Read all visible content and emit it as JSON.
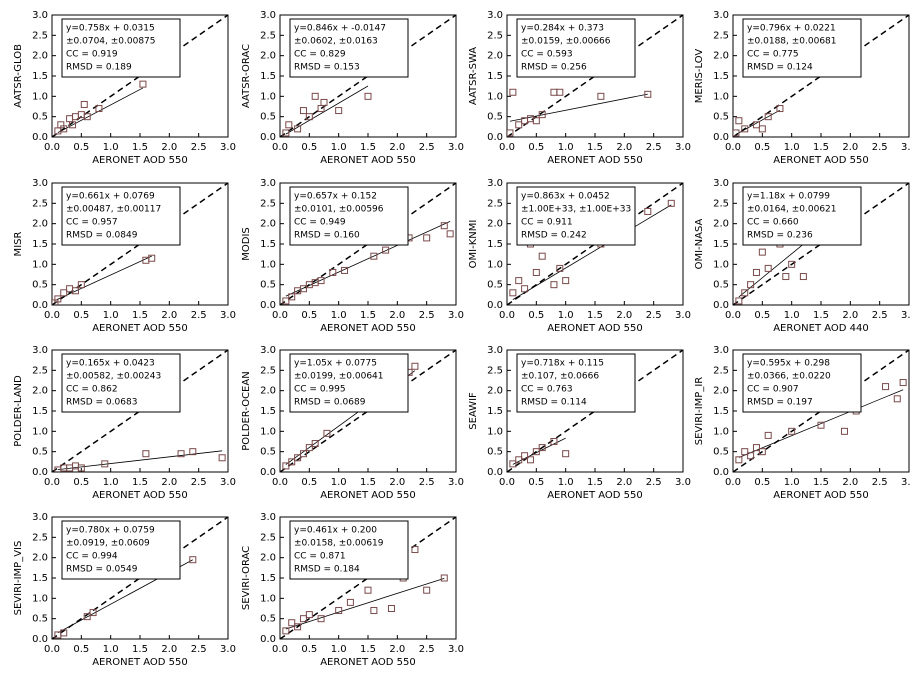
{
  "chart_data": [
    {
      "type": "scatter",
      "ylabel": "AATSR-GLOB",
      "xlabel": "AERONET AOD 550",
      "annotation": [
        "y=0.758x + 0.0315",
        "±0.0704, ±0.00875",
        "CC = 0.919",
        "RMSD = 0.189"
      ],
      "fit": {
        "slope": 0.758,
        "intercept": 0.0315
      },
      "color": "#7a4a4a",
      "x": [
        0.1,
        0.15,
        0.2,
        0.3,
        0.35,
        0.4,
        0.5,
        0.55,
        0.6,
        0.8,
        1.55
      ],
      "y": [
        0.15,
        0.3,
        0.2,
        0.45,
        0.3,
        0.5,
        0.55,
        0.8,
        0.5,
        0.7,
        1.3
      ],
      "xlim": [
        0,
        3
      ],
      "ylim": [
        0,
        3
      ],
      "xticks": [
        {
          "value": 0,
          "label": "0.0"
        },
        0.5,
        {
          "value": 1,
          "label": "1.0"
        },
        1.5,
        {
          "value": 2,
          "label": "2.0"
        },
        2.5,
        {
          "value": 3,
          "label": "3.0"
        }
      ],
      "yticks": [
        {
          "value": 0,
          "label": "0.0"
        },
        0.5,
        {
          "value": 1,
          "label": "1.0"
        },
        1.5,
        {
          "value": 2,
          "label": "2.0"
        },
        2.5,
        {
          "value": 3,
          "label": "3.0"
        }
      ]
    },
    {
      "type": "scatter",
      "ylabel": "AATSR-ORAC",
      "xlabel": "AERONET AOD 550",
      "annotation": [
        "y=0.846x + -0.0147",
        "±0.0602, ±0.0163",
        "CC = 0.829",
        "RMSD = 0.153"
      ],
      "fit": {
        "slope": 0.846,
        "intercept": -0.0147
      },
      "color": "#7a4a4a",
      "x": [
        0.1,
        0.15,
        0.3,
        0.4,
        0.5,
        0.6,
        0.7,
        0.75,
        1.0,
        1.5
      ],
      "y": [
        0.1,
        0.3,
        0.2,
        0.65,
        0.5,
        1.0,
        0.7,
        0.85,
        0.65,
        1.0
      ],
      "xlim": [
        0,
        3
      ],
      "ylim": [
        0,
        3
      ],
      "xticks": [
        {
          "value": 0,
          "label": "0.0"
        },
        0.5,
        {
          "value": 1,
          "label": "1.0"
        },
        1.5,
        {
          "value": 2,
          "label": "2.0"
        },
        2.5,
        {
          "value": 3,
          "label": "3.0"
        }
      ],
      "yticks": [
        {
          "value": 0,
          "label": "0.0"
        },
        0.5,
        {
          "value": 1,
          "label": "1.0"
        },
        1.5,
        {
          "value": 2,
          "label": "2.0"
        },
        2.5,
        {
          "value": 3,
          "label": "3.0"
        }
      ]
    },
    {
      "type": "scatter",
      "ylabel": "AATSR-SWA",
      "xlabel": "AERONET AOD 550",
      "annotation": [
        "y=0.284x + 0.373",
        "±0.0159, ±0.00666",
        "CC = 0.593",
        "RMSD = 0.256"
      ],
      "fit": {
        "slope": 0.284,
        "intercept": 0.373
      },
      "color": "#7a4a4a",
      "x": [
        0.05,
        0.1,
        0.2,
        0.3,
        0.4,
        0.5,
        0.6,
        0.8,
        0.9,
        1.6,
        2.4
      ],
      "y": [
        0.1,
        1.1,
        0.3,
        0.4,
        0.45,
        0.4,
        0.55,
        1.1,
        1.1,
        1.0,
        1.05
      ],
      "xlim": [
        0,
        3
      ],
      "ylim": [
        0,
        3
      ],
      "xticks": [
        {
          "value": 0,
          "label": "0.0"
        },
        0.5,
        {
          "value": 1,
          "label": "1.0"
        },
        1.5,
        {
          "value": 2,
          "label": "2.0"
        },
        2.5,
        {
          "value": 3,
          "label": "3.0"
        }
      ],
      "yticks": [
        {
          "value": 0,
          "label": "0.0"
        },
        0.5,
        {
          "value": 1,
          "label": "1.0"
        },
        1.5,
        {
          "value": 2,
          "label": "2.0"
        },
        2.5,
        {
          "value": 3,
          "label": "3.0"
        }
      ]
    },
    {
      "type": "scatter",
      "ylabel": "MERIS-LOV",
      "xlabel": "AERONET AOD 550",
      "annotation": [
        "y=0.796x + 0.0221",
        "±0.0188, ±0.00681",
        "CC = 0.775",
        "RMSD = 0.124"
      ],
      "fit": {
        "slope": 0.796,
        "intercept": 0.0221
      },
      "color": "#7a4a4a",
      "x": [
        0.05,
        0.1,
        0.2,
        0.4,
        0.5,
        0.6,
        0.8
      ],
      "y": [
        0.1,
        0.4,
        0.2,
        0.3,
        0.2,
        0.5,
        0.7
      ],
      "xlim": [
        0,
        3
      ],
      "ylim": [
        0,
        3
      ],
      "xticks": [
        {
          "value": 0,
          "label": "0.0"
        },
        0.5,
        {
          "value": 1,
          "label": "1.0"
        },
        1.5,
        {
          "value": 2,
          "label": "2.0"
        },
        2.5,
        {
          "value": 3,
          "label": "3.0"
        }
      ],
      "yticks": [
        {
          "value": 0,
          "label": "0.0"
        },
        0.5,
        {
          "value": 1,
          "label": "1.0"
        },
        1.5,
        {
          "value": 2,
          "label": "2.0"
        },
        2.5,
        {
          "value": 3,
          "label": "3.0"
        }
      ]
    },
    {
      "type": "scatter",
      "ylabel": "MISR",
      "xlabel": "AERONET AOD 550",
      "annotation": [
        "y=0.661x + 0.0769",
        "±0.00487, ±0.00117",
        "CC = 0.957",
        "RMSD = 0.0849"
      ],
      "fit": {
        "slope": 0.661,
        "intercept": 0.0769
      },
      "color": "#7a4a4a",
      "x": [
        0.05,
        0.1,
        0.2,
        0.3,
        0.4,
        0.5,
        1.6,
        1.7
      ],
      "y": [
        0.05,
        0.15,
        0.3,
        0.4,
        0.35,
        0.5,
        1.1,
        1.15
      ],
      "xlim": [
        0,
        3
      ],
      "ylim": [
        0,
        3
      ],
      "xticks": [
        {
          "value": 0,
          "label": "0.0"
        },
        0.5,
        {
          "value": 1,
          "label": "1.0"
        },
        1.5,
        {
          "value": 2,
          "label": "2.0"
        },
        2.5,
        {
          "value": 3,
          "label": "3.0"
        }
      ],
      "yticks": [
        {
          "value": 0,
          "label": "0.0"
        },
        0.5,
        {
          "value": 1,
          "label": "1.0"
        },
        1.5,
        {
          "value": 2,
          "label": "2.0"
        },
        2.5,
        {
          "value": 3,
          "label": "3.0"
        }
      ]
    },
    {
      "type": "scatter",
      "ylabel": "MODIS",
      "xlabel": "AERONET AOD 550",
      "annotation": [
        "y=0.657x + 0.152",
        "±0.0101, ±0.00596",
        "CC = 0.949",
        "RMSD = 0.160"
      ],
      "fit": {
        "slope": 0.657,
        "intercept": 0.152
      },
      "color": "#7a4a4a",
      "x": [
        0.1,
        0.2,
        0.3,
        0.4,
        0.5,
        0.6,
        0.7,
        0.9,
        1.1,
        1.6,
        1.8,
        2.2,
        2.5,
        2.8,
        2.9
      ],
      "y": [
        0.1,
        0.2,
        0.35,
        0.4,
        0.5,
        0.55,
        0.6,
        0.8,
        0.85,
        1.2,
        1.35,
        1.65,
        1.65,
        1.95,
        1.75
      ],
      "xlim": [
        0,
        3
      ],
      "ylim": [
        0,
        3
      ],
      "xticks": [
        {
          "value": 0,
          "label": "0.0"
        },
        0.5,
        {
          "value": 1,
          "label": "1.0"
        },
        1.5,
        {
          "value": 2,
          "label": "2.0"
        },
        2.5,
        {
          "value": 3,
          "label": "3.0"
        }
      ],
      "yticks": [
        {
          "value": 0,
          "label": "0.0"
        },
        0.5,
        {
          "value": 1,
          "label": "1.0"
        },
        1.5,
        {
          "value": 2,
          "label": "2.0"
        },
        2.5,
        {
          "value": 3,
          "label": "3.0"
        }
      ]
    },
    {
      "type": "scatter",
      "ylabel": "OMI-KNMI",
      "xlabel": "AERONET AOD 550",
      "annotation": [
        "y=0.863x + 0.0452",
        "±1.00E+33, ±1.00E+33",
        "CC = 0.911",
        "RMSD = 0.242"
      ],
      "fit": {
        "slope": 0.863,
        "intercept": 0.0452
      },
      "color": "#7a4a4a",
      "x": [
        0.1,
        0.2,
        0.3,
        0.4,
        0.5,
        0.6,
        0.8,
        0.9,
        1.0,
        1.6,
        2.4,
        2.8
      ],
      "y": [
        0.3,
        0.6,
        0.4,
        1.5,
        0.8,
        1.2,
        0.5,
        0.9,
        0.6,
        1.5,
        2.3,
        2.5
      ],
      "xlim": [
        0,
        3
      ],
      "ylim": [
        0,
        3
      ],
      "xticks": [
        {
          "value": 0,
          "label": "0.0"
        },
        0.5,
        {
          "value": 1,
          "label": "1.0"
        },
        1.5,
        {
          "value": 2,
          "label": "2.0"
        },
        2.5,
        {
          "value": 3,
          "label": "3.0"
        }
      ],
      "yticks": [
        {
          "value": 0,
          "label": "0.0"
        },
        0.5,
        {
          "value": 1,
          "label": "1.0"
        },
        1.5,
        {
          "value": 2,
          "label": "2.0"
        },
        2.5,
        {
          "value": 3,
          "label": "3.0"
        }
      ]
    },
    {
      "type": "scatter",
      "ylabel": "OMI-NASA",
      "xlabel": "AERONET AOD 440",
      "annotation": [
        "y=1.18x + 0.0799",
        "±0.0164, ±0.00621",
        "CC = 0.660",
        "RMSD = 0.236"
      ],
      "fit": {
        "slope": 1.18,
        "intercept": 0.0799
      },
      "color": "#7a4a4a",
      "x": [
        0.1,
        0.2,
        0.3,
        0.4,
        0.5,
        0.6,
        0.8,
        0.9,
        1.0,
        1.2
      ],
      "y": [
        0.1,
        0.3,
        0.5,
        0.8,
        1.3,
        0.9,
        1.5,
        0.7,
        1.0,
        0.7
      ],
      "xlim": [
        0,
        3
      ],
      "ylim": [
        0,
        3
      ],
      "xticks": [
        {
          "value": 0,
          "label": "0.0"
        },
        0.5,
        {
          "value": 1,
          "label": "1.0"
        },
        1.5,
        {
          "value": 2,
          "label": "2.0"
        },
        2.5,
        {
          "value": 3,
          "label": "3.0"
        }
      ],
      "yticks": [
        {
          "value": 0,
          "label": "0.0"
        },
        0.5,
        {
          "value": 1,
          "label": "1.0"
        },
        1.5,
        {
          "value": 2,
          "label": "2.0"
        },
        2.5,
        {
          "value": 3,
          "label": "3.0"
        }
      ]
    },
    {
      "type": "scatter",
      "ylabel": "POLDER-LAND",
      "xlabel": "AERONET AOD 550",
      "annotation": [
        "y=0.165x + 0.0423",
        "±0.00582, ±0.00243",
        "CC = 0.862",
        "RMSD = 0.0683"
      ],
      "fit": {
        "slope": 0.165,
        "intercept": 0.0423
      },
      "color": "#7a4a4a",
      "x": [
        0.1,
        0.2,
        0.3,
        0.4,
        0.5,
        0.9,
        1.6,
        2.2,
        2.4,
        2.9
      ],
      "y": [
        0.05,
        0.1,
        0.1,
        0.15,
        0.1,
        0.2,
        0.45,
        0.45,
        0.5,
        0.35
      ],
      "xlim": [
        0,
        3
      ],
      "ylim": [
        0,
        3
      ],
      "xticks": [
        {
          "value": 0,
          "label": "0.0"
        },
        0.5,
        {
          "value": 1,
          "label": "1.0"
        },
        1.5,
        {
          "value": 2,
          "label": "2.0"
        },
        2.5,
        {
          "value": 3,
          "label": "3.0"
        }
      ],
      "yticks": [
        {
          "value": 0,
          "label": "0.0"
        },
        0.5,
        {
          "value": 1,
          "label": "1.0"
        },
        1.5,
        {
          "value": 2,
          "label": "2.0"
        },
        2.5,
        {
          "value": 3,
          "label": "3.0"
        }
      ]
    },
    {
      "type": "scatter",
      "ylabel": "POLDER-OCEAN",
      "xlabel": "AERONET AOD 550",
      "annotation": [
        "y=1.05x + 0.0775",
        "±0.0199, ±0.00641",
        "CC = 0.995",
        "RMSD = 0.0689"
      ],
      "fit": {
        "slope": 1.05,
        "intercept": 0.0775
      },
      "color": "#7a4a4a",
      "x": [
        0.1,
        0.2,
        0.3,
        0.4,
        0.5,
        0.6,
        0.8,
        2.2,
        2.3
      ],
      "y": [
        0.15,
        0.25,
        0.35,
        0.45,
        0.6,
        0.7,
        0.95,
        2.45,
        2.6
      ],
      "xlim": [
        0,
        3
      ],
      "ylim": [
        0,
        3
      ],
      "xticks": [
        {
          "value": 0,
          "label": "0.0"
        },
        0.5,
        {
          "value": 1,
          "label": "1.0"
        },
        1.5,
        {
          "value": 2,
          "label": "2.0"
        },
        2.5,
        {
          "value": 3,
          "label": "3.0"
        }
      ],
      "yticks": [
        {
          "value": 0,
          "label": "0.0"
        },
        0.5,
        {
          "value": 1,
          "label": "1.0"
        },
        1.5,
        {
          "value": 2,
          "label": "2.0"
        },
        2.5,
        {
          "value": 3,
          "label": "3.0"
        }
      ]
    },
    {
      "type": "scatter",
      "ylabel": "SEAWIF",
      "xlabel": "AERONET AOD 550",
      "annotation": [
        "y=0.718x + 0.115",
        "±0.107, ±0.0666",
        "CC = 0.763",
        "RMSD = 0.114"
      ],
      "fit": {
        "slope": 0.718,
        "intercept": 0.115
      },
      "color": "#7a4a4a",
      "x": [
        0.1,
        0.2,
        0.3,
        0.4,
        0.5,
        0.6,
        0.8,
        1.0
      ],
      "y": [
        0.2,
        0.3,
        0.4,
        0.3,
        0.5,
        0.6,
        0.75,
        0.45
      ],
      "xlim": [
        0,
        3
      ],
      "ylim": [
        0,
        3
      ],
      "xticks": [
        {
          "value": 0,
          "label": "0.0"
        },
        0.5,
        {
          "value": 1,
          "label": "1.0"
        },
        1.5,
        {
          "value": 2,
          "label": "2.0"
        },
        2.5,
        {
          "value": 3,
          "label": "3.0"
        }
      ],
      "yticks": [
        {
          "value": 0,
          "label": "0.0"
        },
        0.5,
        {
          "value": 1,
          "label": "1.0"
        },
        1.5,
        {
          "value": 2,
          "label": "2.0"
        },
        2.5,
        {
          "value": 3,
          "label": "3.0"
        }
      ]
    },
    {
      "type": "scatter",
      "ylabel": "SEVIRI-IMP_IR",
      "xlabel": "AERONET AOD 550",
      "annotation": [
        "y=0.595x + 0.298",
        "±0.0366, ±0.0220",
        "CC = 0.907",
        "RMSD = 0.197"
      ],
      "fit": {
        "slope": 0.595,
        "intercept": 0.298
      },
      "color": "#7a4a4a",
      "x": [
        0.1,
        0.2,
        0.3,
        0.4,
        0.5,
        0.6,
        1.0,
        1.5,
        1.9,
        2.1,
        2.6,
        2.8,
        2.9
      ],
      "y": [
        0.3,
        0.5,
        0.4,
        0.6,
        0.5,
        0.9,
        1.0,
        1.15,
        1.0,
        1.5,
        2.1,
        1.8,
        2.2
      ],
      "xlim": [
        0,
        3
      ],
      "ylim": [
        0,
        3
      ],
      "xticks": [
        {
          "value": 0,
          "label": "0.0"
        },
        0.5,
        {
          "value": 1,
          "label": "1.0"
        },
        1.5,
        {
          "value": 2,
          "label": "2.0"
        },
        2.5,
        {
          "value": 3,
          "label": "3.0"
        }
      ],
      "yticks": [
        {
          "value": 0,
          "label": "0.0"
        },
        0.5,
        {
          "value": 1,
          "label": "1.0"
        },
        1.5,
        {
          "value": 2,
          "label": "2.0"
        },
        2.5,
        {
          "value": 3,
          "label": "3.0"
        }
      ]
    },
    {
      "type": "scatter",
      "ylabel": "SEVIRI-IMP_VIS",
      "xlabel": "AERONET AOD 550",
      "annotation": [
        "y=0.780x + 0.0759",
        "±0.0919, ±0.0609",
        "CC = 0.994",
        "RMSD = 0.0549"
      ],
      "fit": {
        "slope": 0.78,
        "intercept": 0.0759
      },
      "color": "#7a4a4a",
      "x": [
        0.1,
        0.2,
        0.6,
        0.7,
        2.4
      ],
      "y": [
        0.1,
        0.15,
        0.55,
        0.65,
        1.95
      ],
      "xlim": [
        0,
        3
      ],
      "ylim": [
        0,
        3
      ],
      "xticks": [
        {
          "value": 0,
          "label": "0.0"
        },
        0.5,
        {
          "value": 1,
          "label": "1.0"
        },
        1.5,
        {
          "value": 2,
          "label": "2.0"
        },
        2.5,
        {
          "value": 3,
          "label": "3.0"
        }
      ],
      "yticks": [
        {
          "value": 0,
          "label": "0.0"
        },
        0.5,
        {
          "value": 1,
          "label": "1.0"
        },
        1.5,
        {
          "value": 2,
          "label": "2.0"
        },
        2.5,
        {
          "value": 3,
          "label": "3.0"
        }
      ]
    },
    {
      "type": "scatter",
      "ylabel": "SEVIRI-ORAC",
      "xlabel": "AERONET AOD 550",
      "annotation": [
        "y=0.461x + 0.200",
        "±0.0158, ±0.00619",
        "CC = 0.871",
        "RMSD = 0.184"
      ],
      "fit": {
        "slope": 0.461,
        "intercept": 0.2
      },
      "color": "#7a4a4a",
      "x": [
        0.1,
        0.2,
        0.3,
        0.4,
        0.5,
        0.7,
        1.0,
        1.2,
        1.5,
        1.6,
        1.9,
        2.1,
        2.3,
        2.5,
        2.8
      ],
      "y": [
        0.2,
        0.4,
        0.3,
        0.5,
        0.6,
        0.5,
        0.7,
        0.9,
        1.2,
        0.7,
        0.75,
        1.5,
        2.2,
        1.2,
        1.5
      ],
      "xlim": [
        0,
        3
      ],
      "ylim": [
        0,
        3
      ],
      "xticks": [
        {
          "value": 0,
          "label": "0.0"
        },
        0.5,
        {
          "value": 1,
          "label": "1.0"
        },
        1.5,
        {
          "value": 2,
          "label": "2.0"
        },
        2.5,
        {
          "value": 3,
          "label": "3.0"
        }
      ],
      "yticks": [
        {
          "value": 0,
          "label": "0.0"
        },
        0.5,
        {
          "value": 1,
          "label": "1.0"
        },
        1.5,
        {
          "value": 2,
          "label": "2.0"
        },
        2.5,
        {
          "value": 3,
          "label": "3.0"
        }
      ]
    }
  ]
}
